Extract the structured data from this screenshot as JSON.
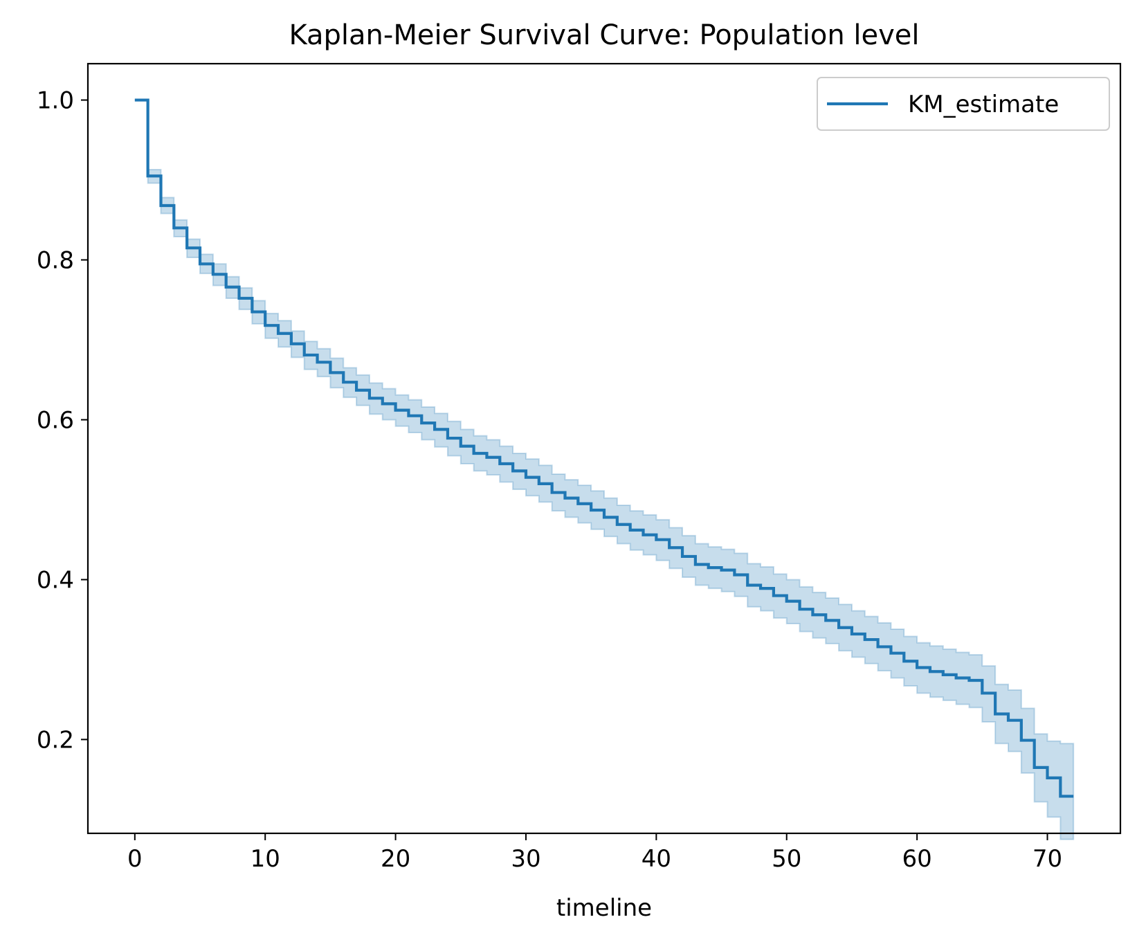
{
  "chart_data": {
    "type": "line",
    "subtype": "step-survival-with-confidence-band",
    "title": "Kaplan-Meier Survival Curve: Population level",
    "xlabel": "timeline",
    "ylabel": "",
    "xlim": [
      -3.6,
      75.6
    ],
    "ylim": [
      0.0826,
      1.0455
    ],
    "xticks": [
      0,
      10,
      20,
      30,
      40,
      50,
      60,
      70
    ],
    "yticks": [
      0.2,
      0.4,
      0.6,
      0.8,
      1.0
    ],
    "ytick_labels": [
      "0.2",
      "0.4",
      "0.6",
      "0.8",
      "1.0"
    ],
    "grid": false,
    "legend_position": "top-right",
    "series": [
      {
        "name": "KM_estimate",
        "color": "#1f77b4",
        "x": [
          0,
          1,
          2,
          3,
          4,
          5,
          6,
          7,
          8,
          9,
          10,
          11,
          12,
          13,
          14,
          15,
          16,
          17,
          18,
          19,
          20,
          21,
          22,
          23,
          24,
          25,
          26,
          27,
          28,
          29,
          30,
          31,
          32,
          33,
          34,
          35,
          36,
          37,
          38,
          39,
          40,
          41,
          42,
          43,
          44,
          45,
          46,
          47,
          48,
          49,
          50,
          51,
          52,
          53,
          54,
          55,
          56,
          57,
          58,
          59,
          60,
          61,
          62,
          63,
          64,
          65,
          66,
          67,
          68,
          69,
          70,
          71,
          72
        ],
        "y": [
          1.0,
          0.905,
          0.868,
          0.84,
          0.815,
          0.795,
          0.782,
          0.766,
          0.752,
          0.735,
          0.718,
          0.708,
          0.695,
          0.681,
          0.672,
          0.659,
          0.647,
          0.637,
          0.627,
          0.62,
          0.612,
          0.605,
          0.596,
          0.588,
          0.577,
          0.567,
          0.558,
          0.553,
          0.545,
          0.536,
          0.528,
          0.52,
          0.509,
          0.502,
          0.495,
          0.487,
          0.478,
          0.469,
          0.462,
          0.456,
          0.45,
          0.44,
          0.429,
          0.419,
          0.415,
          0.412,
          0.406,
          0.393,
          0.389,
          0.38,
          0.373,
          0.363,
          0.356,
          0.349,
          0.34,
          0.332,
          0.325,
          0.316,
          0.308,
          0.298,
          0.29,
          0.285,
          0.281,
          0.277,
          0.274,
          0.258,
          0.232,
          0.224,
          0.199,
          0.165,
          0.152,
          0.129,
          0.129
        ],
        "ci_lower": [
          1.0,
          0.896,
          0.858,
          0.829,
          0.803,
          0.783,
          0.768,
          0.752,
          0.738,
          0.72,
          0.702,
          0.691,
          0.678,
          0.663,
          0.654,
          0.64,
          0.628,
          0.618,
          0.607,
          0.6,
          0.592,
          0.584,
          0.575,
          0.566,
          0.555,
          0.545,
          0.536,
          0.531,
          0.522,
          0.513,
          0.505,
          0.497,
          0.486,
          0.478,
          0.471,
          0.463,
          0.454,
          0.445,
          0.437,
          0.431,
          0.424,
          0.414,
          0.403,
          0.393,
          0.389,
          0.385,
          0.379,
          0.366,
          0.361,
          0.352,
          0.345,
          0.335,
          0.327,
          0.32,
          0.311,
          0.303,
          0.295,
          0.286,
          0.277,
          0.267,
          0.258,
          0.253,
          0.249,
          0.244,
          0.24,
          0.222,
          0.195,
          0.185,
          0.158,
          0.122,
          0.103,
          0.075,
          0.075
        ],
        "ci_upper": [
          1.0,
          0.913,
          0.878,
          0.85,
          0.826,
          0.807,
          0.795,
          0.779,
          0.765,
          0.749,
          0.733,
          0.724,
          0.711,
          0.698,
          0.689,
          0.677,
          0.665,
          0.656,
          0.646,
          0.639,
          0.631,
          0.625,
          0.616,
          0.608,
          0.598,
          0.588,
          0.58,
          0.575,
          0.567,
          0.558,
          0.551,
          0.543,
          0.532,
          0.525,
          0.518,
          0.511,
          0.502,
          0.493,
          0.486,
          0.481,
          0.475,
          0.465,
          0.455,
          0.445,
          0.441,
          0.438,
          0.433,
          0.42,
          0.416,
          0.407,
          0.4,
          0.391,
          0.384,
          0.377,
          0.369,
          0.361,
          0.354,
          0.346,
          0.338,
          0.329,
          0.321,
          0.317,
          0.313,
          0.309,
          0.306,
          0.292,
          0.269,
          0.262,
          0.239,
          0.207,
          0.198,
          0.195,
          0.195
        ]
      }
    ]
  }
}
